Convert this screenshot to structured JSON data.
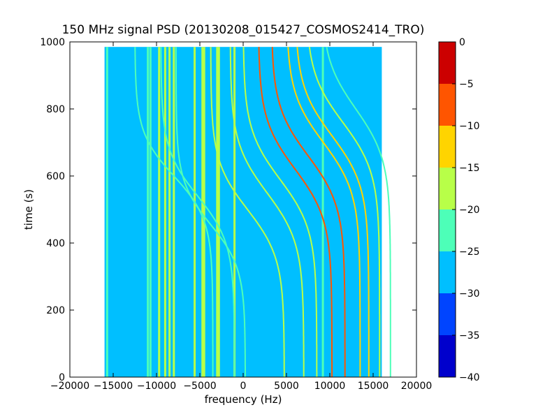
{
  "chart_data": {
    "type": "heatmap",
    "title": "150 MHz signal PSD (20130208_015427_COSMOS2414_TRO)",
    "xlabel": "frequency (Hz)",
    "ylabel": "time (s)",
    "xlim": [
      -20000,
      20000
    ],
    "ylim": [
      0,
      1000
    ],
    "x_ticks": [
      -20000,
      -15000,
      -10000,
      -5000,
      0,
      5000,
      10000,
      15000,
      20000
    ],
    "x_tick_labels": [
      "−20000",
      "−15000",
      "−10000",
      "−5000",
      "0",
      "5000",
      "10000",
      "15000",
      "20000"
    ],
    "y_ticks": [
      0,
      200,
      400,
      600,
      800,
      1000
    ],
    "y_tick_labels": [
      "0",
      "200",
      "400",
      "600",
      "800",
      "1000"
    ],
    "data_extent": {
      "freq": [
        -16000,
        16000
      ],
      "time": [
        0,
        985
      ]
    },
    "background_level": -27,
    "colorbar": {
      "range": [
        -40,
        0
      ],
      "ticks": [
        0,
        -5,
        -10,
        -15,
        -20,
        -25,
        -30,
        -35,
        -40
      ],
      "tick_labels": [
        "0",
        "−5",
        "−10",
        "−15",
        "−20",
        "−25",
        "−30",
        "−35",
        "−40"
      ],
      "bins": [
        {
          "from": -40,
          "to": -35,
          "color": "#0000cc"
        },
        {
          "from": -35,
          "to": -30,
          "color": "#0044ff"
        },
        {
          "from": -30,
          "to": -25,
          "color": "#00bfff"
        },
        {
          "from": -25,
          "to": -20,
          "color": "#4dffb8"
        },
        {
          "from": -20,
          "to": -15,
          "color": "#b8ff48"
        },
        {
          "from": -15,
          "to": -10,
          "color": "#ffd400"
        },
        {
          "from": -10,
          "to": -5,
          "color": "#ff5500"
        },
        {
          "from": -5,
          "to": 0,
          "color": "#cc0000"
        }
      ]
    },
    "vertical_lines": [
      {
        "freq": -15700,
        "level": -22
      },
      {
        "freq": -11000,
        "level": -21
      },
      {
        "freq": -10700,
        "level": -21
      },
      {
        "freq": -9700,
        "level": -18
      },
      {
        "freq": -9000,
        "level": -17
      },
      {
        "freq": -8500,
        "level": -17
      },
      {
        "freq": -8000,
        "level": -18
      },
      {
        "freq": -5600,
        "level": -18
      },
      {
        "freq": -4700,
        "level": -18
      },
      {
        "freq": -4500,
        "level": -18
      },
      {
        "freq": -3000,
        "level": -17
      },
      {
        "freq": -2800,
        "level": -17
      },
      {
        "freq": -1000,
        "level": -18
      },
      {
        "freq": 9200,
        "level": -24
      }
    ],
    "tracks": [
      {
        "f_start": -16000,
        "f_end": 0,
        "t_mid": 600,
        "a": 9000,
        "b": 130,
        "level": -22
      },
      {
        "f_start": -12500,
        "f_end": 2000,
        "t_mid": 540,
        "a": 8500,
        "b": 140,
        "level": -21
      },
      {
        "f_start": -11000,
        "f_end": 3500,
        "t_mid": 455,
        "a": 8000,
        "b": 130,
        "level": -21
      },
      {
        "f_start": -6000,
        "f_end": 7000,
        "t_mid": 500,
        "a": 8500,
        "b": 145,
        "level": -18
      },
      {
        "f_start": -3500,
        "f_end": 9000,
        "t_mid": 550,
        "a": 8500,
        "b": 150,
        "level": -17
      },
      {
        "f_start": -2000,
        "f_end": 10500,
        "t_mid": 590,
        "a": 8500,
        "b": 150,
        "level": -16
      },
      {
        "f_start": 0,
        "f_end": 12000,
        "t_mid": 620,
        "a": 8500,
        "b": 150,
        "level": -10
      },
      {
        "f_start": 2000,
        "f_end": 13000,
        "t_mid": 660,
        "a": 8500,
        "b": 150,
        "level": -8
      },
      {
        "f_start": 4500,
        "f_end": 14000,
        "t_mid": 700,
        "a": 8500,
        "b": 150,
        "level": -12
      },
      {
        "f_start": 5500,
        "f_end": 15000,
        "t_mid": 720,
        "a": 8500,
        "b": 150,
        "level": -12
      },
      {
        "f_start": 7000,
        "f_end": 16000,
        "t_mid": 760,
        "a": 8500,
        "b": 150,
        "level": -20
      },
      {
        "f_start": 10000,
        "f_end": 16000,
        "t_mid": 800,
        "a": 8000,
        "b": 150,
        "level": -22
      }
    ]
  }
}
